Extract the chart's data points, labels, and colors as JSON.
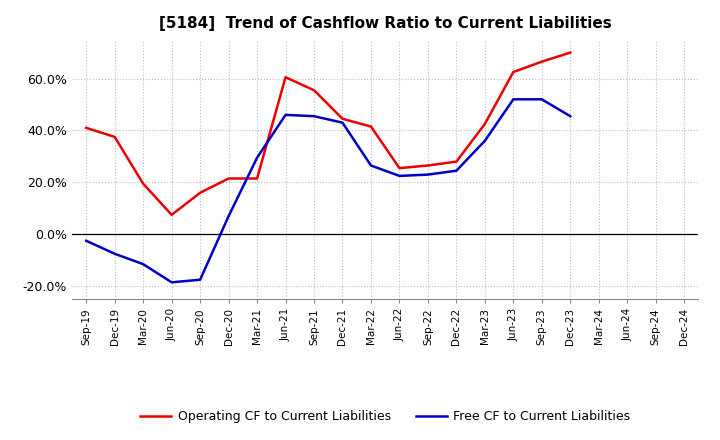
{
  "title": "[5184]  Trend of Cashflow Ratio to Current Liabilities",
  "x_labels": [
    "Sep-19",
    "Dec-19",
    "Mar-20",
    "Jun-20",
    "Sep-20",
    "Dec-20",
    "Mar-21",
    "Jun-21",
    "Sep-21",
    "Dec-21",
    "Mar-22",
    "Jun-22",
    "Sep-22",
    "Dec-22",
    "Mar-23",
    "Jun-23",
    "Sep-23",
    "Dec-23",
    "Mar-24",
    "Jun-24",
    "Sep-24",
    "Dec-24"
  ],
  "operating_cf": [
    0.41,
    0.375,
    0.195,
    0.075,
    0.16,
    0.215,
    0.215,
    0.605,
    0.555,
    0.445,
    0.415,
    0.255,
    0.265,
    0.28,
    0.425,
    0.625,
    0.665,
    0.7,
    null,
    null,
    null,
    null
  ],
  "free_cf": [
    -0.025,
    -0.075,
    -0.115,
    -0.185,
    -0.175,
    0.07,
    0.295,
    0.46,
    0.455,
    0.43,
    0.265,
    0.225,
    0.23,
    0.245,
    0.36,
    0.52,
    0.52,
    0.455,
    null,
    null,
    null,
    null
  ],
  "operating_color": "#ee0000",
  "free_color": "#0000cc",
  "ylim": [
    -0.25,
    0.75
  ],
  "yticks": [
    -0.2,
    0.0,
    0.2,
    0.4,
    0.6
  ],
  "ytick_labels": [
    "-20.0%",
    "0.0%",
    "20.0%",
    "40.0%",
    "60.0%"
  ],
  "legend_operating": "Operating CF to Current Liabilities",
  "legend_free": "Free CF to Current Liabilities",
  "bg_color": "#ffffff",
  "plot_bg_color": "#ffffff",
  "grid_color": "#bbbbbb"
}
